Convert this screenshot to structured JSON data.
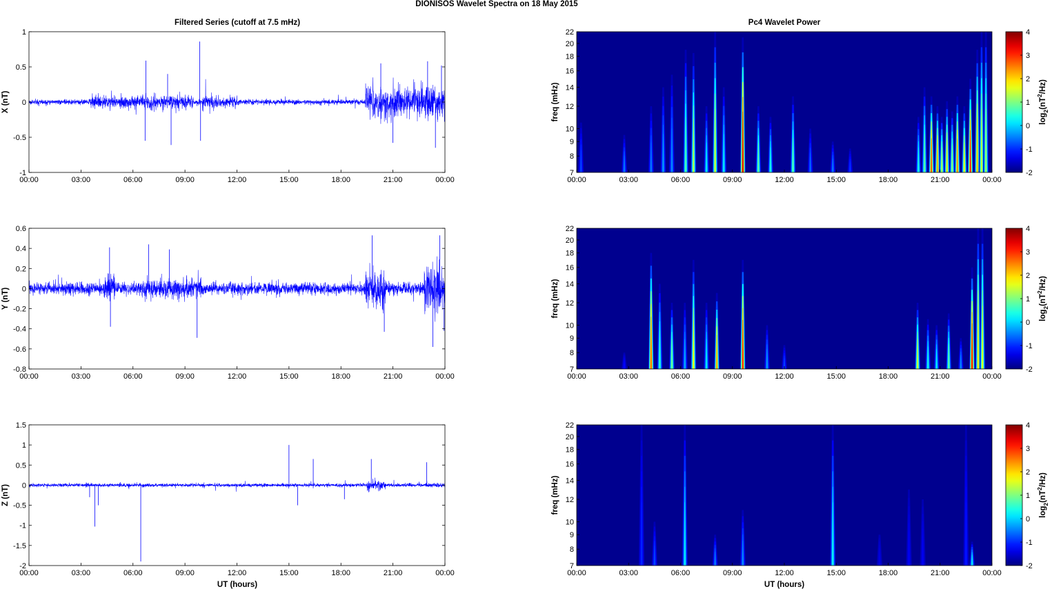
{
  "figure": {
    "suptitle": "DIONISOS Wavelet Spectra on 18 May      2015",
    "left_title": "Filtered Series (cutoff at 7.5 mHz)",
    "right_title": "Pc4 Wavelet Power",
    "xlabel": "UT (hours)",
    "time_ticks": [
      "00:00",
      "03:00",
      "06:00",
      "09:00",
      "12:00",
      "15:00",
      "18:00",
      "21:00",
      "00:00"
    ],
    "freq_label": "freq (mHz)",
    "colorbar_label_base": "log",
    "colorbar_label_sub": "2",
    "colorbar_label_paren": "(nT",
    "colorbar_label_sup": "2",
    "colorbar_label_end": "/Hz)",
    "colors": {
      "trace": "#0000ff",
      "background_power": "#00008f"
    }
  },
  "chart_data": [
    {
      "type": "line",
      "component": "X",
      "ylabel": "X (nT)",
      "xlim_hours": [
        0,
        24
      ],
      "ylim": [
        -1,
        1
      ],
      "yticks": [
        -1,
        -0.5,
        0,
        0.5,
        1
      ],
      "ytick_labels": [
        "-1",
        "-0.5",
        "0",
        "0.5",
        "1"
      ],
      "baseline_noise": 0.03,
      "activity": [
        {
          "t0": 3.5,
          "t1": 9.5,
          "amp": 0.1
        },
        {
          "t0": 10,
          "t1": 12,
          "amp": 0.09
        },
        {
          "t0": 19.4,
          "t1": 24,
          "amp": 0.24
        }
      ],
      "spikes": [
        {
          "t": 6.75,
          "value": 0.59
        },
        {
          "t": 6.7,
          "value": -0.55
        },
        {
          "t": 8.2,
          "value": -0.61
        },
        {
          "t": 8.0,
          "value": 0.4
        },
        {
          "t": 9.85,
          "value": 0.86
        },
        {
          "t": 9.9,
          "value": -0.55
        },
        {
          "t": 20.3,
          "value": 0.55
        },
        {
          "t": 21.0,
          "value": -0.58
        },
        {
          "t": 23.0,
          "value": 0.58
        },
        {
          "t": 23.45,
          "value": -0.65
        },
        {
          "t": 23.8,
          "value": 0.52
        }
      ]
    },
    {
      "type": "line",
      "component": "Y",
      "ylabel": "Y (nT)",
      "xlim_hours": [
        0,
        24
      ],
      "ylim": [
        -0.8,
        0.6
      ],
      "yticks": [
        -0.8,
        -0.6,
        -0.4,
        -0.2,
        0,
        0.2,
        0.4,
        0.6
      ],
      "ytick_labels": [
        "-0.8",
        "-0.6",
        "-0.4",
        "-0.2",
        "0",
        "0.2",
        "0.4",
        "0.6"
      ],
      "baseline_noise": 0.05,
      "activity": [
        {
          "t0": 4.3,
          "t1": 5.0,
          "amp": 0.15
        },
        {
          "t0": 6.5,
          "t1": 10,
          "amp": 0.1
        },
        {
          "t0": 19.4,
          "t1": 20.6,
          "amp": 0.2
        },
        {
          "t0": 22.8,
          "t1": 24,
          "amp": 0.25
        }
      ],
      "spikes": [
        {
          "t": 4.65,
          "value": 0.41
        },
        {
          "t": 4.7,
          "value": -0.38
        },
        {
          "t": 6.9,
          "value": 0.44
        },
        {
          "t": 8.1,
          "value": 0.39
        },
        {
          "t": 9.7,
          "value": -0.49
        },
        {
          "t": 19.8,
          "value": 0.53
        },
        {
          "t": 20.5,
          "value": -0.43
        },
        {
          "t": 23.3,
          "value": -0.58
        },
        {
          "t": 23.7,
          "value": 0.53
        },
        {
          "t": 23.95,
          "value": -0.42
        }
      ]
    },
    {
      "type": "line",
      "component": "Z",
      "ylabel": "Z (nT)",
      "xlim_hours": [
        0,
        24
      ],
      "ylim": [
        -2,
        1.5
      ],
      "yticks": [
        -2,
        -1.5,
        -1,
        -0.5,
        0,
        0.5,
        1,
        1.5
      ],
      "ytick_labels": [
        "-2",
        "-1.5",
        "-1",
        "-0.5",
        "0",
        "0.5",
        "1",
        "1.5"
      ],
      "baseline_noise": 0.035,
      "activity": [
        {
          "t0": 19.5,
          "t1": 20.6,
          "amp": 0.12
        },
        {
          "t0": 22.9,
          "t1": 24,
          "amp": 0.06
        }
      ],
      "spikes": [
        {
          "t": 3.8,
          "value": -1.03
        },
        {
          "t": 6.45,
          "value": -1.9
        },
        {
          "t": 3.5,
          "value": -0.3
        },
        {
          "t": 4.0,
          "value": -0.5
        },
        {
          "t": 15.0,
          "value": 1.0
        },
        {
          "t": 15.5,
          "value": -0.5
        },
        {
          "t": 16.4,
          "value": 0.65
        },
        {
          "t": 18.2,
          "value": -0.35
        },
        {
          "t": 19.75,
          "value": 0.65
        },
        {
          "t": 22.95,
          "value": 0.57
        }
      ]
    },
    {
      "type": "heatmap",
      "component": "X",
      "ylabel": "freq (mHz)",
      "xlim_hours": [
        0,
        24
      ],
      "ylim_mhz": [
        7,
        22
      ],
      "y_scale": "log",
      "yticks": [
        7,
        8,
        9,
        10,
        12,
        14,
        16,
        18,
        20,
        22
      ],
      "colorbar": {
        "min": -2,
        "max": 4,
        "ticks": [
          -2,
          -1,
          0,
          1,
          2,
          3,
          4
        ]
      },
      "bursts": [
        {
          "t": 0.25,
          "fmax": 10.5,
          "power": -0.8
        },
        {
          "t": 2.75,
          "fmax": 9.5,
          "power": -0.5
        },
        {
          "t": 4.3,
          "fmax": 12,
          "power": -0.5
        },
        {
          "t": 5.0,
          "fmax": 14,
          "power": -0.3
        },
        {
          "t": 5.5,
          "fmax": 15.5,
          "power": -0.4
        },
        {
          "t": 6.3,
          "fmax": 19,
          "power": 0.8
        },
        {
          "t": 6.75,
          "fmax": 18.5,
          "power": 1.4
        },
        {
          "t": 7.5,
          "fmax": 12,
          "power": 0.2
        },
        {
          "t": 8.0,
          "fmax": 22,
          "power": 1.6
        },
        {
          "t": 8.5,
          "fmax": 14,
          "power": 0.2
        },
        {
          "t": 9.6,
          "fmax": 21,
          "power": 3.6
        },
        {
          "t": 10.5,
          "fmax": 12,
          "power": 0.9
        },
        {
          "t": 11.2,
          "fmax": 11,
          "power": 0.4
        },
        {
          "t": 12.5,
          "fmax": 13,
          "power": 0.8
        },
        {
          "t": 13.5,
          "fmax": 10,
          "power": -0.6
        },
        {
          "t": 14.8,
          "fmax": 9,
          "power": -0.5
        },
        {
          "t": 15.8,
          "fmax": 8.5,
          "power": -0.9
        },
        {
          "t": 19.75,
          "fmax": 11,
          "power": 0.4
        },
        {
          "t": 20.1,
          "fmax": 14,
          "power": 0.9
        },
        {
          "t": 20.5,
          "fmax": 13,
          "power": 2.9
        },
        {
          "t": 20.85,
          "fmax": 12,
          "power": 2.4
        },
        {
          "t": 21.1,
          "fmax": 11,
          "power": 1.4
        },
        {
          "t": 21.4,
          "fmax": 12.5,
          "power": 2.0
        },
        {
          "t": 21.7,
          "fmax": 11.5,
          "power": 1.2
        },
        {
          "t": 22.0,
          "fmax": 13,
          "power": 2.6
        },
        {
          "t": 22.4,
          "fmax": 12,
          "power": 1.8
        },
        {
          "t": 22.75,
          "fmax": 15,
          "power": 3.2
        },
        {
          "t": 23.15,
          "fmax": 19,
          "power": 2.2
        },
        {
          "t": 23.4,
          "fmax": 22,
          "power": 1.6
        },
        {
          "t": 23.65,
          "fmax": 22,
          "power": 1.3
        }
      ]
    },
    {
      "type": "heatmap",
      "component": "Y",
      "ylabel": "freq (mHz)",
      "xlim_hours": [
        0,
        24
      ],
      "ylim_mhz": [
        7,
        22
      ],
      "y_scale": "log",
      "yticks": [
        7,
        8,
        9,
        10,
        12,
        14,
        16,
        18,
        20,
        22
      ],
      "colorbar": {
        "min": -2,
        "max": 4,
        "ticks": [
          -2,
          -1,
          0,
          1,
          2,
          3,
          4
        ]
      },
      "bursts": [
        {
          "t": 2.75,
          "fmax": 8,
          "power": -1.2
        },
        {
          "t": 4.3,
          "fmax": 18,
          "power": 2.8
        },
        {
          "t": 4.8,
          "fmax": 14,
          "power": 0.6
        },
        {
          "t": 5.5,
          "fmax": 12,
          "power": 1.0
        },
        {
          "t": 6.25,
          "fmax": 12,
          "power": -0.2
        },
        {
          "t": 6.75,
          "fmax": 17,
          "power": 1.8
        },
        {
          "t": 7.5,
          "fmax": 12,
          "power": 0.2
        },
        {
          "t": 8.1,
          "fmax": 13,
          "power": 2.4
        },
        {
          "t": 9.6,
          "fmax": 17,
          "power": 3.2
        },
        {
          "t": 11.0,
          "fmax": 10,
          "power": -0.3
        },
        {
          "t": 12.0,
          "fmax": 8.5,
          "power": -0.8
        },
        {
          "t": 19.7,
          "fmax": 12,
          "power": 1.6
        },
        {
          "t": 20.3,
          "fmax": 10.5,
          "power": 0.4
        },
        {
          "t": 20.8,
          "fmax": 10,
          "power": 0.2
        },
        {
          "t": 21.5,
          "fmax": 11,
          "power": 0.9
        },
        {
          "t": 22.2,
          "fmax": 9,
          "power": -0.4
        },
        {
          "t": 22.85,
          "fmax": 16,
          "power": 3.4
        },
        {
          "t": 23.2,
          "fmax": 22,
          "power": 2.0
        },
        {
          "t": 23.45,
          "fmax": 22,
          "power": 1.7
        }
      ]
    },
    {
      "type": "heatmap",
      "component": "Z",
      "ylabel": "freq (mHz)",
      "xlim_hours": [
        0,
        24
      ],
      "ylim_mhz": [
        7,
        22
      ],
      "y_scale": "log",
      "yticks": [
        7,
        8,
        9,
        10,
        12,
        14,
        16,
        18,
        20,
        22
      ],
      "colorbar": {
        "min": -2,
        "max": 4,
        "ticks": [
          -2,
          -1,
          0,
          1,
          2,
          3,
          4
        ]
      },
      "bursts": [
        {
          "t": 3.75,
          "fmax": 22,
          "power": -1.0
        },
        {
          "t": 4.5,
          "fmax": 10,
          "power": -0.8
        },
        {
          "t": 6.25,
          "fmax": 22,
          "power": 0.2
        },
        {
          "t": 8.0,
          "fmax": 9,
          "power": -0.5
        },
        {
          "t": 9.6,
          "fmax": 11,
          "power": -0.4
        },
        {
          "t": 14.8,
          "fmax": 22,
          "power": 0.3
        },
        {
          "t": 17.5,
          "fmax": 9,
          "power": -1.4
        },
        {
          "t": 19.2,
          "fmax": 13,
          "power": -1.3
        },
        {
          "t": 20.0,
          "fmax": 12,
          "power": -1.3
        },
        {
          "t": 22.5,
          "fmax": 22,
          "power": -1.1
        },
        {
          "t": 22.85,
          "fmax": 8.5,
          "power": 0.2
        }
      ]
    }
  ]
}
